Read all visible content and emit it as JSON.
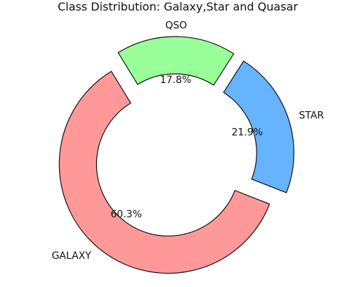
{
  "chart_data": {
    "type": "pie",
    "style": "donut, exploded slices",
    "title": "Class Distribution: Galaxy,Star and Quasar",
    "slices": [
      {
        "label": "GALAXY",
        "value": 60.3,
        "pct_label": "60.3%",
        "color": "#ff9999"
      },
      {
        "label": "STAR",
        "value": 21.9,
        "pct_label": "21.9%",
        "color": "#66b3ff"
      },
      {
        "label": "QSO",
        "value": 17.8,
        "pct_label": "17.8%",
        "color": "#99ff99"
      }
    ]
  }
}
